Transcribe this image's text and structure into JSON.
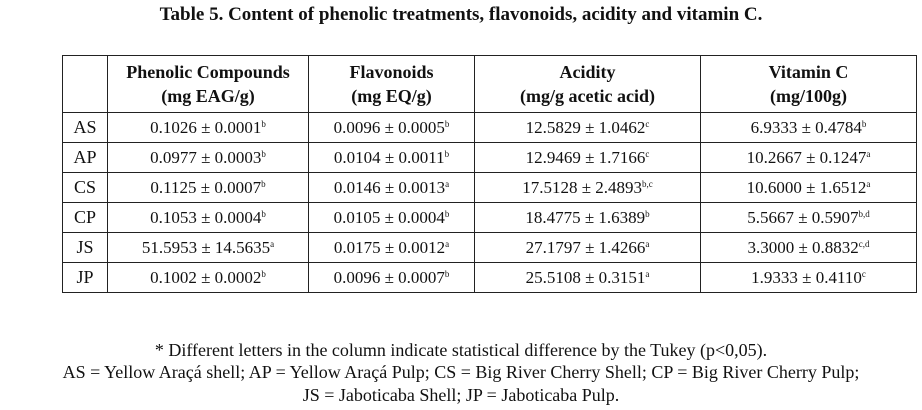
{
  "title": "Table 5. Content of phenolic treatments, flavonoids, acidity and vitamin C.",
  "headers": [
    {
      "line1": "Phenolic Compounds",
      "line2": "(mg EAG/g)"
    },
    {
      "line1": "Flavonoids",
      "line2": "(mg EQ/g)"
    },
    {
      "line1": "Acidity",
      "line2": "(mg/g acetic acid)"
    },
    {
      "line1": "Vitamin C",
      "line2": "(mg/100g)"
    }
  ],
  "rows": [
    {
      "label": "AS",
      "cells": [
        {
          "v": "0.1026 ± 0.0001",
          "s": "b"
        },
        {
          "v": "0.0096 ± 0.0005",
          "s": "b"
        },
        {
          "v": "12.5829 ± 1.0462",
          "s": "c"
        },
        {
          "v": "6.9333 ± 0.4784",
          "s": "b"
        }
      ]
    },
    {
      "label": "AP",
      "cells": [
        {
          "v": "0.0977 ± 0.0003",
          "s": "b"
        },
        {
          "v": "0.0104 ± 0.0011",
          "s": "b"
        },
        {
          "v": "12.9469 ± 1.7166",
          "s": "c"
        },
        {
          "v": "10.2667 ± 0.1247",
          "s": "a"
        }
      ]
    },
    {
      "label": "CS",
      "cells": [
        {
          "v": "0.1125 ± 0.0007",
          "s": "b"
        },
        {
          "v": "0.0146 ± 0.0013",
          "s": "a"
        },
        {
          "v": "17.5128 ± 2.4893",
          "s": "b,c"
        },
        {
          "v": "10.6000 ± 1.6512",
          "s": "a"
        }
      ]
    },
    {
      "label": "CP",
      "cells": [
        {
          "v": "0.1053 ± 0.0004",
          "s": "b"
        },
        {
          "v": "0.0105 ± 0.0004",
          "s": "b"
        },
        {
          "v": "18.4775 ± 1.6389",
          "s": "b"
        },
        {
          "v": "5.5667 ± 0.5907",
          "s": "b,d"
        }
      ]
    },
    {
      "label": "JS",
      "cells": [
        {
          "v": "51.5953 ± 14.5635",
          "s": "a"
        },
        {
          "v": "0.0175 ± 0.0012",
          "s": "a"
        },
        {
          "v": "27.1797 ± 1.4266",
          "s": "a"
        },
        {
          "v": "3.3000 ± 0.8832",
          "s": "c,d"
        }
      ]
    },
    {
      "label": "JP",
      "cells": [
        {
          "v": "0.1002 ± 0.0002",
          "s": "b"
        },
        {
          "v": "0.0096 ± 0.0007",
          "s": "b"
        },
        {
          "v": "25.5108 ± 0.3151",
          "s": "a"
        },
        {
          "v": "1.9333 ± 0.4110",
          "s": "c"
        }
      ]
    }
  ],
  "footnotes": [
    "* Different letters in the column indicate statistical difference by the Tukey (p<0,05).",
    "AS = Yellow Araçá shell; AP = Yellow Araçá Pulp; CS = Big River Cherry Shell; CP = Big River Cherry Pulp;",
    "JS = Jaboticaba Shell; JP = Jaboticaba Pulp."
  ]
}
